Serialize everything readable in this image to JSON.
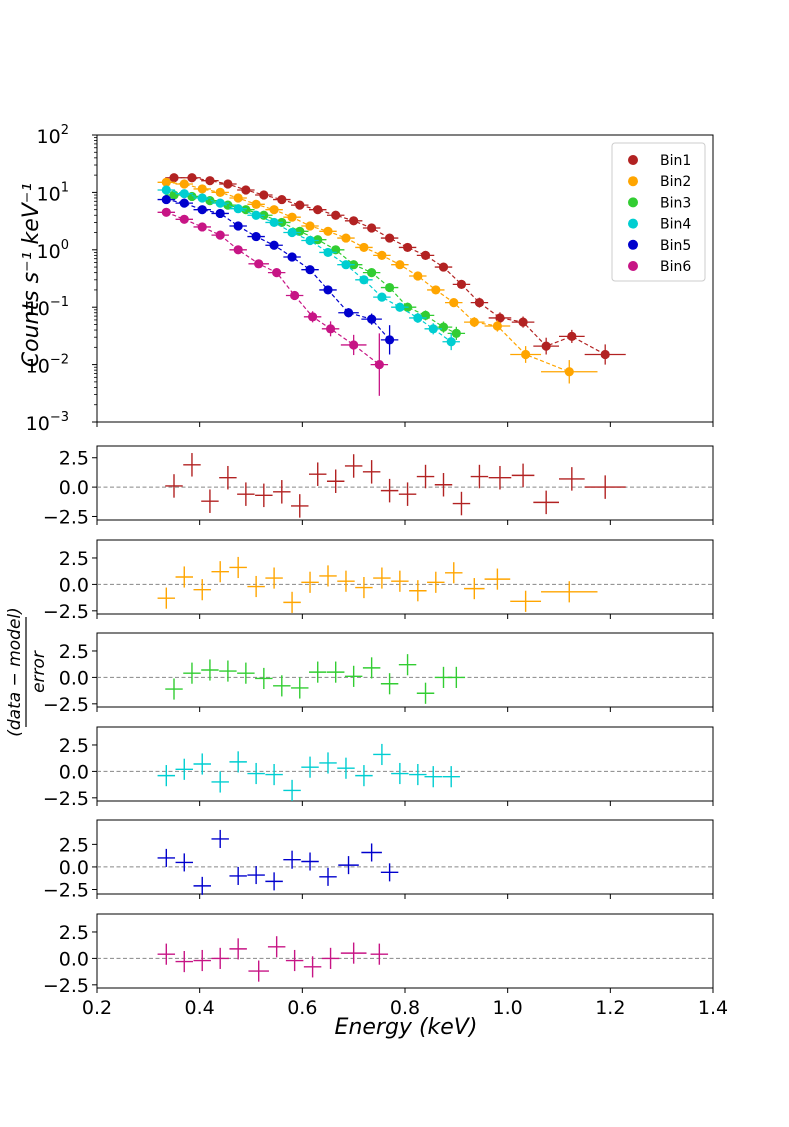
{
  "chart_data": {
    "type": "scatter",
    "title": "",
    "xlabel": "Energy (keV)",
    "xlim": [
      0.2,
      1.4
    ],
    "x_ticks": [
      "0.2",
      "0.4",
      "0.6",
      "0.8",
      "1.0",
      "1.2",
      "1.4"
    ],
    "top_panel": {
      "ylabel": "Counts s⁻¹ keV⁻¹",
      "yscale": "log",
      "ylim": [
        0.001,
        100
      ],
      "y_ticks": [
        {
          "value": 0.001,
          "base": "10",
          "exp": "−3"
        },
        {
          "value": 0.01,
          "base": "10",
          "exp": "−2"
        },
        {
          "value": 0.1,
          "base": "10",
          "exp": "−1"
        },
        {
          "value": 1,
          "base": "10",
          "exp": "0"
        },
        {
          "value": 10,
          "base": "10",
          "exp": "1"
        },
        {
          "value": 100,
          "base": "10",
          "exp": "2"
        }
      ],
      "legend_location": "upper right",
      "series": [
        {
          "name": "Bin1",
          "color": "#b22222",
          "x": [
            0.35,
            0.385,
            0.42,
            0.455,
            0.49,
            0.525,
            0.56,
            0.595,
            0.63,
            0.665,
            0.7,
            0.735,
            0.77,
            0.805,
            0.84,
            0.875,
            0.91,
            0.945,
            0.985,
            1.03,
            1.075,
            1.125,
            1.19
          ],
          "y": [
            18,
            18,
            16,
            14,
            11,
            9,
            7.5,
            6,
            5,
            4,
            3.2,
            2.4,
            1.6,
            1.1,
            0.8,
            0.5,
            0.25,
            0.12,
            0.065,
            0.055,
            0.021,
            0.031,
            0.015
          ],
          "xerr": [
            0.017,
            0.017,
            0.017,
            0.017,
            0.017,
            0.017,
            0.017,
            0.017,
            0.017,
            0.017,
            0.017,
            0.017,
            0.017,
            0.017,
            0.017,
            0.017,
            0.017,
            0.017,
            0.022,
            0.022,
            0.025,
            0.025,
            0.04
          ],
          "yerr_factor": [
            1.05,
            1.05,
            1.05,
            1.05,
            1.05,
            1.05,
            1.06,
            1.06,
            1.06,
            1.07,
            1.07,
            1.08,
            1.09,
            1.1,
            1.12,
            1.14,
            1.18,
            1.22,
            1.25,
            1.25,
            1.4,
            1.3,
            1.5
          ]
        },
        {
          "name": "Bin2",
          "color": "#ffa500",
          "x": [
            0.335,
            0.37,
            0.405,
            0.44,
            0.475,
            0.51,
            0.545,
            0.58,
            0.615,
            0.65,
            0.685,
            0.72,
            0.755,
            0.79,
            0.825,
            0.86,
            0.895,
            0.935,
            0.98,
            1.035,
            1.12
          ],
          "y": [
            15,
            14,
            11.5,
            10,
            8,
            6.2,
            5,
            3.7,
            2.6,
            2.1,
            1.6,
            1.1,
            0.8,
            0.55,
            0.35,
            0.2,
            0.12,
            0.055,
            0.047,
            0.015,
            0.0075
          ],
          "xerr": [
            0.017,
            0.017,
            0.017,
            0.017,
            0.017,
            0.017,
            0.017,
            0.017,
            0.017,
            0.017,
            0.017,
            0.017,
            0.017,
            0.017,
            0.017,
            0.017,
            0.017,
            0.02,
            0.025,
            0.03,
            0.055
          ],
          "yerr_factor": [
            1.05,
            1.05,
            1.05,
            1.05,
            1.05,
            1.05,
            1.06,
            1.06,
            1.06,
            1.07,
            1.07,
            1.08,
            1.09,
            1.1,
            1.12,
            1.14,
            1.18,
            1.22,
            1.25,
            1.4,
            1.6
          ]
        },
        {
          "name": "Bin3",
          "color": "#32cd32",
          "x": [
            0.35,
            0.385,
            0.42,
            0.455,
            0.49,
            0.525,
            0.56,
            0.595,
            0.63,
            0.665,
            0.7,
            0.735,
            0.77,
            0.805,
            0.84,
            0.875,
            0.9
          ],
          "y": [
            9,
            8.5,
            7.2,
            6,
            5,
            4,
            3,
            2.1,
            1.5,
            1.0,
            0.55,
            0.4,
            0.22,
            0.1,
            0.072,
            0.045,
            0.035
          ],
          "xerr": [
            0.017,
            0.017,
            0.017,
            0.017,
            0.017,
            0.017,
            0.017,
            0.017,
            0.017,
            0.017,
            0.017,
            0.017,
            0.017,
            0.017,
            0.017,
            0.017,
            0.017
          ],
          "yerr_factor": [
            1.05,
            1.05,
            1.05,
            1.05,
            1.05,
            1.06,
            1.06,
            1.07,
            1.07,
            1.08,
            1.1,
            1.12,
            1.15,
            1.2,
            1.22,
            1.25,
            1.3
          ]
        },
        {
          "name": "Bin4",
          "color": "#00ced1",
          "x": [
            0.335,
            0.37,
            0.405,
            0.44,
            0.475,
            0.51,
            0.545,
            0.58,
            0.615,
            0.65,
            0.685,
            0.72,
            0.755,
            0.79,
            0.825,
            0.855,
            0.89
          ],
          "y": [
            11,
            9.5,
            8,
            6.5,
            5.2,
            4,
            3,
            2,
            1.45,
            0.9,
            0.55,
            0.3,
            0.15,
            0.1,
            0.065,
            0.042,
            0.025
          ],
          "xerr": [
            0.017,
            0.017,
            0.017,
            0.017,
            0.017,
            0.017,
            0.017,
            0.017,
            0.017,
            0.017,
            0.017,
            0.017,
            0.017,
            0.017,
            0.017,
            0.017,
            0.017
          ],
          "yerr_factor": [
            1.05,
            1.05,
            1.05,
            1.05,
            1.05,
            1.06,
            1.06,
            1.07,
            1.07,
            1.08,
            1.1,
            1.12,
            1.15,
            1.2,
            1.22,
            1.25,
            1.4
          ]
        },
        {
          "name": "Bin5",
          "color": "#0000cd",
          "x": [
            0.335,
            0.37,
            0.405,
            0.44,
            0.475,
            0.51,
            0.545,
            0.58,
            0.615,
            0.65,
            0.69,
            0.735,
            0.77
          ],
          "y": [
            7.5,
            6.5,
            5,
            4.3,
            2.6,
            1.7,
            1.2,
            0.75,
            0.45,
            0.2,
            0.08,
            0.062,
            0.027
          ],
          "xerr": [
            0.017,
            0.017,
            0.017,
            0.017,
            0.017,
            0.017,
            0.017,
            0.017,
            0.017,
            0.017,
            0.02,
            0.02,
            0.017
          ],
          "yerr_factor": [
            1.05,
            1.05,
            1.06,
            1.06,
            1.07,
            1.08,
            1.08,
            1.1,
            1.12,
            1.15,
            1.2,
            1.25,
            1.8
          ]
        },
        {
          "name": "Bin6",
          "color": "#c71585",
          "x": [
            0.335,
            0.37,
            0.405,
            0.44,
            0.475,
            0.515,
            0.55,
            0.585,
            0.62,
            0.655,
            0.7,
            0.75
          ],
          "y": [
            4.5,
            3.4,
            2.5,
            1.8,
            1.0,
            0.57,
            0.4,
            0.16,
            0.068,
            0.042,
            0.022,
            0.01
          ],
          "xerr": [
            0.017,
            0.017,
            0.017,
            0.017,
            0.017,
            0.02,
            0.017,
            0.017,
            0.017,
            0.017,
            0.025,
            0.017
          ],
          "yerr_factor": [
            1.05,
            1.05,
            1.06,
            1.06,
            1.08,
            1.1,
            1.12,
            1.15,
            1.25,
            1.35,
            1.5,
            3.5
          ]
        }
      ]
    },
    "residual_panels": {
      "ylabel": "(data − model) / error",
      "ylabel_numerator": "(data − model)",
      "ylabel_denominator": "error",
      "reference_line": 0,
      "panels": [
        {
          "series": "Bin1",
          "color": "#b22222",
          "ylim": [
            -2.8,
            3.5
          ],
          "y_ticks": [
            "2.5",
            "0.0",
            "−2.5"
          ],
          "x": [
            0.35,
            0.385,
            0.42,
            0.455,
            0.49,
            0.525,
            0.56,
            0.595,
            0.63,
            0.665,
            0.7,
            0.735,
            0.77,
            0.805,
            0.84,
            0.875,
            0.91,
            0.945,
            0.985,
            1.03,
            1.075,
            1.125,
            1.19
          ],
          "y": [
            0.1,
            1.9,
            -1.2,
            0.8,
            -0.6,
            -0.7,
            -0.4,
            -1.6,
            1.1,
            0.5,
            1.8,
            1.3,
            -0.3,
            -0.6,
            0.9,
            0.2,
            -1.4,
            0.9,
            0.8,
            1.0,
            -1.3,
            0.7,
            0.0
          ],
          "xerr": [
            0.017,
            0.017,
            0.017,
            0.017,
            0.017,
            0.017,
            0.017,
            0.017,
            0.017,
            0.017,
            0.017,
            0.017,
            0.017,
            0.017,
            0.017,
            0.017,
            0.017,
            0.017,
            0.022,
            0.022,
            0.025,
            0.025,
            0.04
          ]
        },
        {
          "series": "Bin2",
          "color": "#ffa500",
          "ylim": [
            -2.8,
            4.2
          ],
          "y_ticks": [
            "2.5",
            "0.0",
            "−2.5"
          ],
          "x": [
            0.335,
            0.37,
            0.405,
            0.44,
            0.475,
            0.51,
            0.545,
            0.58,
            0.615,
            0.65,
            0.685,
            0.72,
            0.755,
            0.79,
            0.825,
            0.86,
            0.895,
            0.935,
            0.98,
            1.035,
            1.12
          ],
          "y": [
            -1.3,
            0.7,
            -0.5,
            1.2,
            1.6,
            -0.2,
            0.6,
            -1.7,
            0.2,
            0.8,
            0.3,
            -0.3,
            0.6,
            0.3,
            -0.6,
            0.2,
            1.1,
            -0.4,
            0.5,
            -1.6,
            -0.7
          ],
          "xerr": [
            0.017,
            0.017,
            0.017,
            0.017,
            0.017,
            0.017,
            0.017,
            0.017,
            0.017,
            0.017,
            0.017,
            0.017,
            0.017,
            0.017,
            0.017,
            0.017,
            0.017,
            0.02,
            0.025,
            0.03,
            0.055
          ]
        },
        {
          "series": "Bin3",
          "color": "#32cd32",
          "ylim": [
            -2.8,
            4.2
          ],
          "y_ticks": [
            "2.5",
            "0.0",
            "−2.5"
          ],
          "x": [
            0.35,
            0.385,
            0.42,
            0.455,
            0.49,
            0.525,
            0.56,
            0.595,
            0.63,
            0.665,
            0.7,
            0.735,
            0.77,
            0.805,
            0.84,
            0.875,
            0.9
          ],
          "y": [
            -1.1,
            0.4,
            0.7,
            0.6,
            0.4,
            -0.1,
            -0.8,
            -1.0,
            0.5,
            0.5,
            0.1,
            0.9,
            -0.6,
            1.2,
            -1.5,
            0.0,
            0.0
          ],
          "xerr": [
            0.017,
            0.017,
            0.017,
            0.017,
            0.017,
            0.017,
            0.017,
            0.017,
            0.017,
            0.017,
            0.017,
            0.017,
            0.017,
            0.017,
            0.017,
            0.017,
            0.017
          ]
        },
        {
          "series": "Bin4",
          "color": "#00ced1",
          "ylim": [
            -2.8,
            4.2
          ],
          "y_ticks": [
            "2.5",
            "0.0",
            "−2.5"
          ],
          "x": [
            0.335,
            0.37,
            0.405,
            0.44,
            0.475,
            0.51,
            0.545,
            0.58,
            0.615,
            0.65,
            0.685,
            0.72,
            0.755,
            0.79,
            0.825,
            0.855,
            0.89
          ],
          "y": [
            -0.4,
            0.2,
            0.7,
            -1.0,
            0.9,
            -0.2,
            -0.3,
            -1.8,
            0.4,
            0.8,
            0.3,
            -0.4,
            1.6,
            -0.2,
            -0.3,
            -0.5,
            -0.5
          ],
          "xerr": [
            0.017,
            0.017,
            0.017,
            0.017,
            0.017,
            0.017,
            0.017,
            0.017,
            0.017,
            0.017,
            0.017,
            0.017,
            0.017,
            0.017,
            0.017,
            0.017,
            0.017
          ]
        },
        {
          "series": "Bin5",
          "color": "#0000cd",
          "ylim": [
            -3.0,
            5.2
          ],
          "y_ticks": [
            "2.5",
            "0.0",
            "−2.5"
          ],
          "x": [
            0.335,
            0.37,
            0.405,
            0.44,
            0.475,
            0.51,
            0.545,
            0.58,
            0.615,
            0.65,
            0.69,
            0.735,
            0.77
          ],
          "y": [
            1.0,
            0.5,
            -2.1,
            3.1,
            -1.0,
            -0.9,
            -1.6,
            0.8,
            0.6,
            -1.1,
            0.2,
            1.6,
            -0.6
          ],
          "xerr": [
            0.017,
            0.017,
            0.017,
            0.017,
            0.017,
            0.017,
            0.017,
            0.017,
            0.017,
            0.017,
            0.02,
            0.02,
            0.017
          ]
        },
        {
          "series": "Bin6",
          "color": "#c71585",
          "ylim": [
            -2.8,
            4.2
          ],
          "y_ticks": [
            "2.5",
            "0.0",
            "−2.5"
          ],
          "x": [
            0.335,
            0.37,
            0.405,
            0.44,
            0.475,
            0.515,
            0.55,
            0.585,
            0.62,
            0.655,
            0.7,
            0.75
          ],
          "y": [
            0.4,
            -0.3,
            -0.2,
            0.0,
            0.9,
            -1.2,
            1.1,
            -0.2,
            -0.8,
            0.0,
            0.5,
            0.4
          ],
          "xerr": [
            0.017,
            0.017,
            0.017,
            0.017,
            0.017,
            0.02,
            0.017,
            0.017,
            0.017,
            0.017,
            0.025,
            0.017
          ]
        }
      ]
    }
  }
}
